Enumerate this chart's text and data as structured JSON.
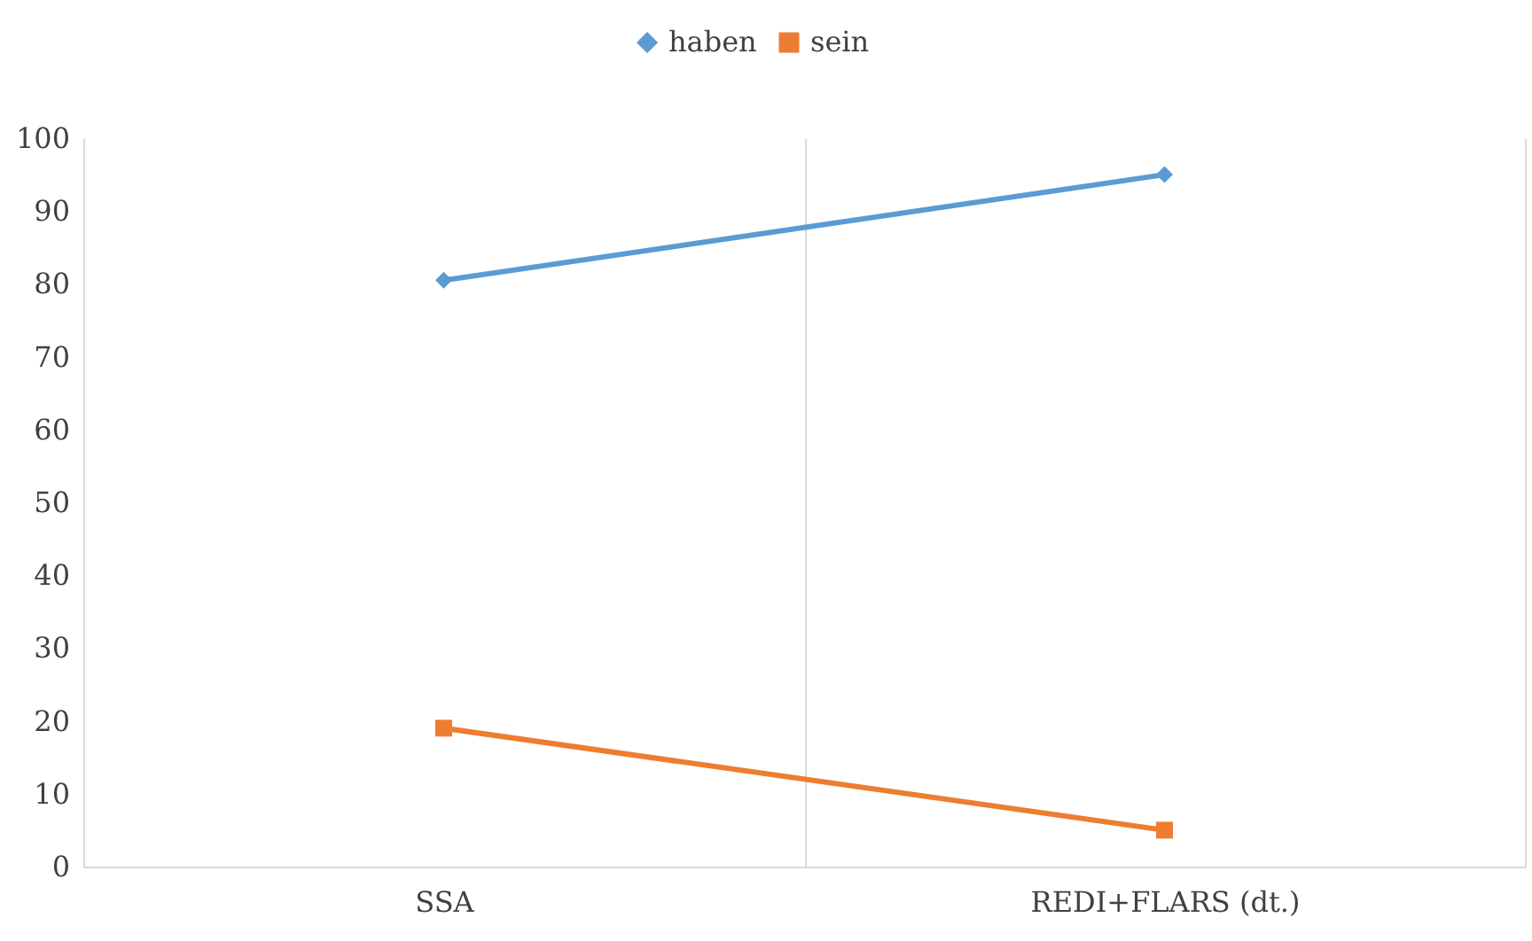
{
  "chart_data": {
    "type": "line",
    "categories": [
      "SSA",
      "REDI+FLARS (dt.)"
    ],
    "series": [
      {
        "name": "haben",
        "color": "#5b9bd5",
        "values": [
          80.5,
          95
        ],
        "marker": "diamond"
      },
      {
        "name": "sein",
        "color": "#ed7d31",
        "values": [
          19,
          5
        ],
        "marker": "square"
      }
    ],
    "ylim": [
      0,
      100
    ],
    "yticks": [
      0,
      10,
      20,
      30,
      40,
      50,
      60,
      70,
      80,
      90,
      100
    ],
    "grid": "x",
    "legend": "top"
  }
}
